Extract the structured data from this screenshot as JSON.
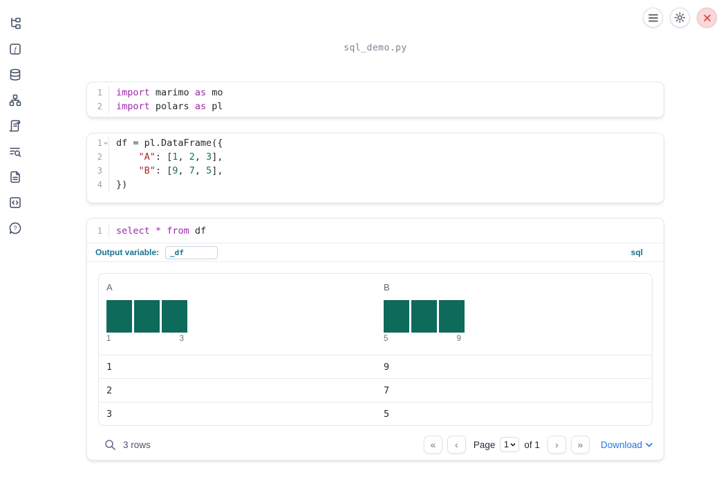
{
  "app": {
    "title": "sql_demo.py"
  },
  "topbar": {
    "icons": [
      "hamburger-menu-icon",
      "gear-icon",
      "close-icon"
    ]
  },
  "sidebar": {
    "icons": [
      "file-tree-icon",
      "functions-icon",
      "datasources-icon",
      "dependency-graph-icon",
      "logs-icon",
      "table-of-contents-icon",
      "documentation-icon",
      "snippets-icon",
      "help-icon"
    ]
  },
  "colors": {
    "keyword": "#9d27ad",
    "string": "#b42020",
    "number": "#17753c",
    "code_text": "#24292f",
    "histogram_bar": "#0e6a5b",
    "sql_accent": "#17718f",
    "link_blue": "#2673e8",
    "danger_red": "#d64545"
  },
  "cells": [
    {
      "lines": [
        {
          "n": "1",
          "tokens": [
            [
              "import",
              "kw"
            ],
            [
              " marimo ",
              "pl"
            ],
            [
              "as",
              "kw"
            ],
            [
              " mo",
              "pl"
            ]
          ]
        },
        {
          "n": "2",
          "tokens": [
            [
              "import",
              "kw"
            ],
            [
              " polars ",
              "pl"
            ],
            [
              "as",
              "kw"
            ],
            [
              " pl",
              "pl"
            ]
          ]
        }
      ]
    },
    {
      "lines": [
        {
          "n": "1",
          "fold": true,
          "tokens": [
            [
              "df = pl.DataFrame({",
              "pl"
            ]
          ]
        },
        {
          "n": "2",
          "tokens": [
            [
              "    ",
              "pl"
            ],
            [
              "\"A\"",
              "str"
            ],
            [
              ": [",
              "pl"
            ],
            [
              "1",
              "num"
            ],
            [
              ", ",
              "pl"
            ],
            [
              "2",
              "num"
            ],
            [
              ", ",
              "pl"
            ],
            [
              "3",
              "num"
            ],
            [
              "],",
              "pl"
            ]
          ]
        },
        {
          "n": "3",
          "tokens": [
            [
              "    ",
              "pl"
            ],
            [
              "\"B\"",
              "str"
            ],
            [
              ": [",
              "pl"
            ],
            [
              "9",
              "num"
            ],
            [
              ", ",
              "pl"
            ],
            [
              "7",
              "num"
            ],
            [
              ", ",
              "pl"
            ],
            [
              "5",
              "num"
            ],
            [
              "],",
              "pl"
            ]
          ]
        },
        {
          "n": "4",
          "tokens": [
            [
              "})",
              "pl"
            ]
          ]
        }
      ]
    },
    {
      "lines": [
        {
          "n": "1",
          "tokens": [
            [
              "select",
              "kw"
            ],
            [
              " ",
              "pl"
            ],
            [
              "*",
              "kw"
            ],
            [
              " ",
              "pl"
            ],
            [
              "from",
              "kw"
            ],
            [
              " df",
              "pl"
            ]
          ]
        }
      ]
    }
  ],
  "sql_cell": {
    "output_variable_label": "Output variable:",
    "output_variable_value": "_df",
    "language_label": "sql"
  },
  "table": {
    "columns": [
      {
        "name": "A",
        "bins": [
          1,
          1,
          1
        ],
        "min_label": "1",
        "max_label": "3"
      },
      {
        "name": "B",
        "bins": [
          1,
          1,
          1
        ],
        "min_label": "5",
        "max_label": "9"
      }
    ],
    "rows": [
      [
        "1",
        "9"
      ],
      [
        "2",
        "7"
      ],
      [
        "3",
        "5"
      ]
    ],
    "footer": {
      "row_count": "3 rows",
      "page_label": "Page",
      "page_value": "1",
      "of_label": "of 1",
      "download_label": "Download"
    }
  }
}
